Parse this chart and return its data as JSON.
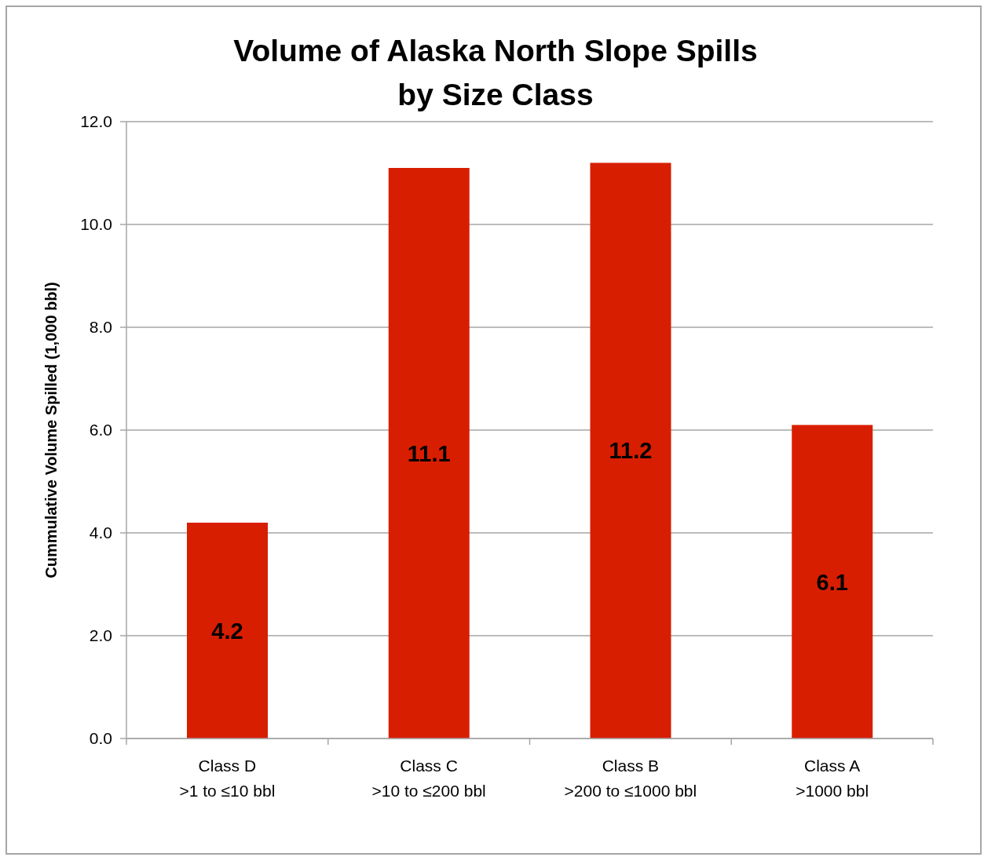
{
  "chart_data": {
    "type": "bar",
    "title": "Volume of Alaska North Slope Spills\nby Size Class",
    "ylabel": "Cummulative Volume Spilled (1,000 bbl)",
    "categories": [
      "Class D\n>1 to ≤10 bbl",
      "Class C\n>10 to ≤200 bbl",
      "Class B\n>200 to ≤1000 bbl",
      "Class A\n>1000 bbl"
    ],
    "values": [
      4.2,
      11.1,
      11.2,
      6.1
    ],
    "color": "#d81e00",
    "ylim": [
      0,
      12
    ],
    "yticks": [
      {
        "value": 0,
        "label": "0.0"
      },
      {
        "value": 2,
        "label": "2.0"
      },
      {
        "value": 4,
        "label": "4.0"
      },
      {
        "value": 6,
        "label": "6.0"
      },
      {
        "value": 8,
        "label": "8.0"
      },
      {
        "value": 10,
        "label": "10.0"
      },
      {
        "value": 12,
        "label": "12.0"
      }
    ],
    "grid": "y",
    "data_labels": true
  }
}
